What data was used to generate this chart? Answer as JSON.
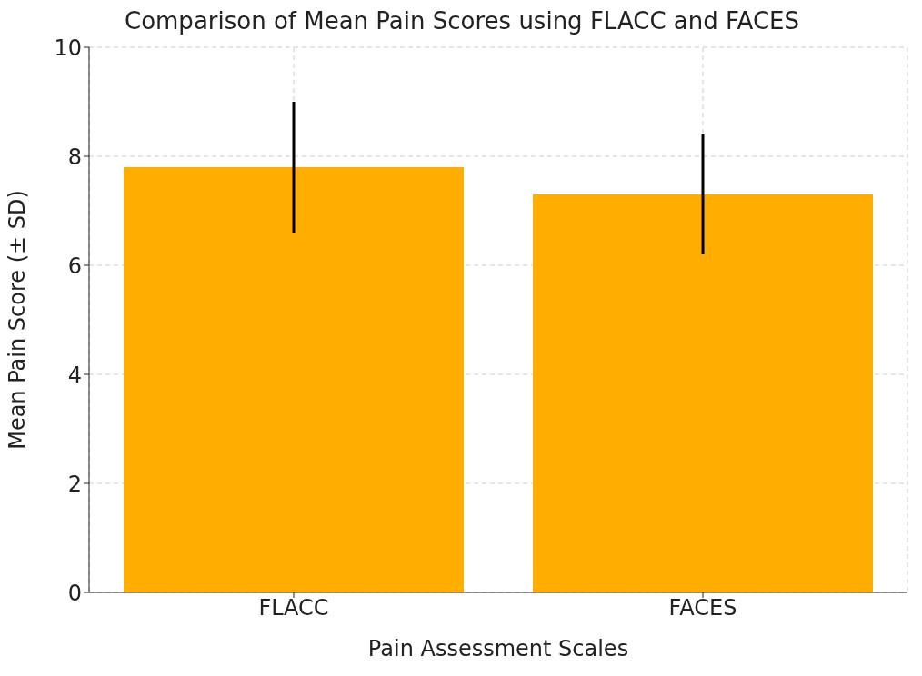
{
  "chart_data": {
    "type": "bar",
    "title": "Comparison of Mean Pain Scores using FLACC and FACES",
    "xlabel": "Pain Assessment Scales",
    "ylabel": "Mean Pain Score (± SD)",
    "categories": [
      "FLACC",
      "FACES"
    ],
    "values": [
      7.8,
      7.3
    ],
    "errors": [
      1.2,
      1.1
    ],
    "color": "#ffae00",
    "ylim": [
      0,
      10
    ],
    "yticks": [
      0,
      2,
      4,
      6,
      8,
      10
    ],
    "grid": true
  }
}
